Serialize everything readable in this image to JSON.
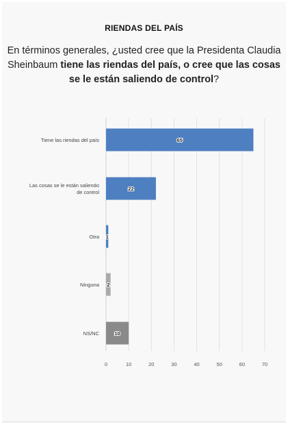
{
  "title": "RIENDAS DEL PAÍS",
  "question": {
    "part1": "En términos generales, ¿usted cree que la Presidenta Claudia Sheinbaum ",
    "bold": "tiene las riendas del país, o cree que las cosas se le están saliendo de control",
    "part2": "?"
  },
  "chart_data": {
    "type": "bar",
    "orientation": "horizontal",
    "categories": [
      "Tiene las riendas del país",
      "Las cosas se le están saliendo de control",
      "Otra",
      "Ninguna",
      "NS/NC"
    ],
    "values": [
      65,
      22,
      1,
      2,
      10
    ],
    "bar_colors": [
      "#4e7fc0",
      "#4e7fc0",
      "#4e7fc0",
      "#a9a9a9",
      "#8a8a8a"
    ],
    "xlim": [
      0,
      70
    ],
    "xticks": [
      0,
      10,
      20,
      30,
      40,
      50,
      60,
      70
    ],
    "grid": true,
    "xlabel": "",
    "ylabel": ""
  }
}
